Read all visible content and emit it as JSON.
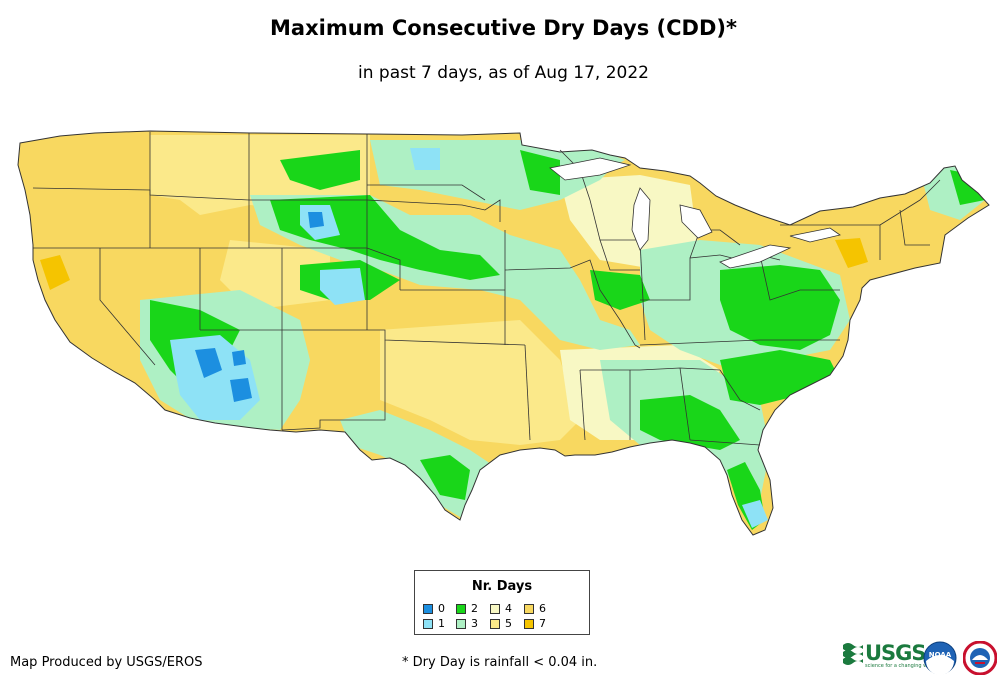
{
  "title": "Maximum Consecutive Dry Days (CDD)*",
  "subtitle": "in past 7 days, as of Aug 17, 2022",
  "legend": {
    "title": "Nr. Days",
    "items": [
      {
        "label": "0",
        "color": "#1c8fe0"
      },
      {
        "label": "1",
        "color": "#8ee2f6"
      },
      {
        "label": "2",
        "color": "#19d619"
      },
      {
        "label": "3",
        "color": "#aef0c4"
      },
      {
        "label": "4",
        "color": "#f8f8c4"
      },
      {
        "label": "5",
        "color": "#fbe98a"
      },
      {
        "label": "6",
        "color": "#f8d860"
      },
      {
        "label": "7",
        "color": "#f5c400"
      }
    ]
  },
  "footer": {
    "credit": "Map Produced by USGS/EROS",
    "note": "* Dry Day is rainfall < 0.04 in."
  },
  "logos": {
    "usgs": "USGS",
    "usgs_tagline": "science for a changing world",
    "noaa": "noaa",
    "nws": "NWS"
  },
  "colors": {
    "border": "#333333",
    "water": "#ffffff"
  }
}
